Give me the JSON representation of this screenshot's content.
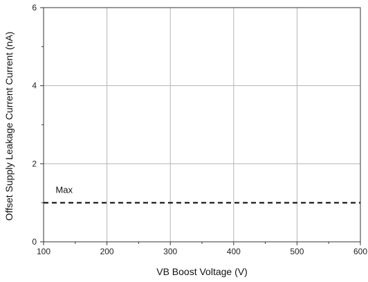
{
  "chart_data": {
    "type": "line",
    "title": "",
    "xlabel": "VB Boost Voltage (V)",
    "ylabel": "Offset Supply Leakage Current Current (nA)",
    "xlim": [
      100,
      600
    ],
    "ylim": [
      0,
      6
    ],
    "x_ticks": [
      100,
      200,
      300,
      400,
      500,
      600
    ],
    "x_tick_labels": [
      "100",
      "200",
      "300",
      "400",
      "500",
      "600"
    ],
    "y_ticks": [
      0,
      2,
      4,
      6
    ],
    "y_tick_labels": [
      "0",
      "2",
      "4",
      "6"
    ],
    "grid": true,
    "series": [
      {
        "name": "Max",
        "style": "dashed",
        "color": "#000000",
        "x": [
          100,
          600
        ],
        "values": [
          1,
          1
        ]
      }
    ],
    "annotations": [
      {
        "text": "Max",
        "x": 119,
        "y": 1.25
      }
    ]
  }
}
